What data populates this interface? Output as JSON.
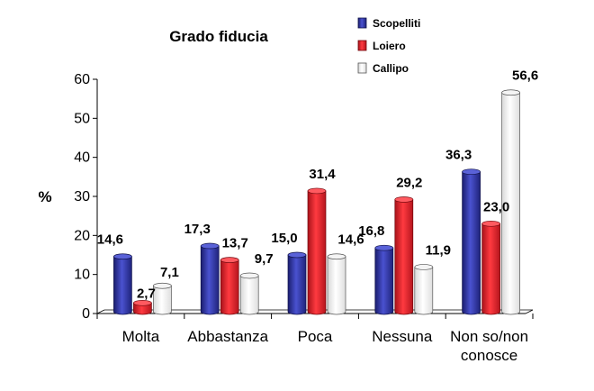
{
  "chart_data": {
    "type": "bar",
    "title": "Grado fiducia",
    "ylabel": "%",
    "xlabel": "",
    "ylim": [
      0,
      60
    ],
    "yticks": [
      "0",
      "10",
      "20",
      "30",
      "40",
      "50",
      "60"
    ],
    "categories": [
      "Molta",
      "Abbastanza",
      "Poca",
      "Nessuna",
      "Non so/non conosce"
    ],
    "category_lines": [
      [
        "Molta"
      ],
      [
        "Abbastanza"
      ],
      [
        "Poca"
      ],
      [
        "Nessuna"
      ],
      [
        "Non so/non",
        "conosce"
      ]
    ],
    "legend_position": "top-right",
    "grid": false,
    "series": [
      {
        "name": "Scopelliti",
        "color": "#2b2f9c",
        "values": [
          14.6,
          17.3,
          15.0,
          16.8,
          36.3
        ],
        "labels": [
          "14,6",
          "17,3",
          "15,0",
          "16,8",
          "36,3"
        ]
      },
      {
        "name": "Loiero",
        "color": "#e0202a",
        "values": [
          2.7,
          13.7,
          31.4,
          29.2,
          23.0
        ],
        "labels": [
          "2,7",
          "13,7",
          "31,4",
          "29,2",
          "23,0"
        ]
      },
      {
        "name": "Callipo",
        "color": "#ffffff",
        "values": [
          7.1,
          9.7,
          14.6,
          11.9,
          56.6
        ],
        "labels": [
          "7,1",
          "9,7",
          "14,6",
          "11,9",
          "56,6"
        ]
      }
    ]
  }
}
